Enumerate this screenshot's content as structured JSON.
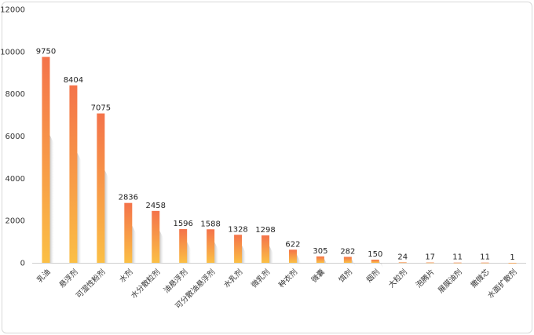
{
  "chart_data": {
    "type": "bar",
    "categories": [
      "乳油",
      "悬浮剂",
      "可湿性粉剂",
      "水剂",
      "水分散粒剂",
      "油悬浮剂",
      "可分散油悬浮剂",
      "水乳剂",
      "微乳剂",
      "种衣剂",
      "微囊",
      "饵剂",
      "烟剂",
      "大粒剂",
      "泡腾片",
      "展膜油剂",
      "撒微芯",
      "水面扩散剂"
    ],
    "values": [
      9750,
      8404,
      7075,
      2836,
      2458,
      1596,
      1588,
      1328,
      1298,
      622,
      305,
      282,
      150,
      24,
      17,
      11,
      11,
      1
    ],
    "yticks": [
      0,
      2000,
      4000,
      6000,
      8000,
      10000,
      12000
    ],
    "ylim": [
      0,
      12000
    ],
    "title": "",
    "xlabel": "",
    "ylabel": "",
    "grid": false,
    "bar_gradient": {
      "top": "#f4734a",
      "bottom": "#fbbf45"
    },
    "shadow_color": "#bfbfbf"
  }
}
